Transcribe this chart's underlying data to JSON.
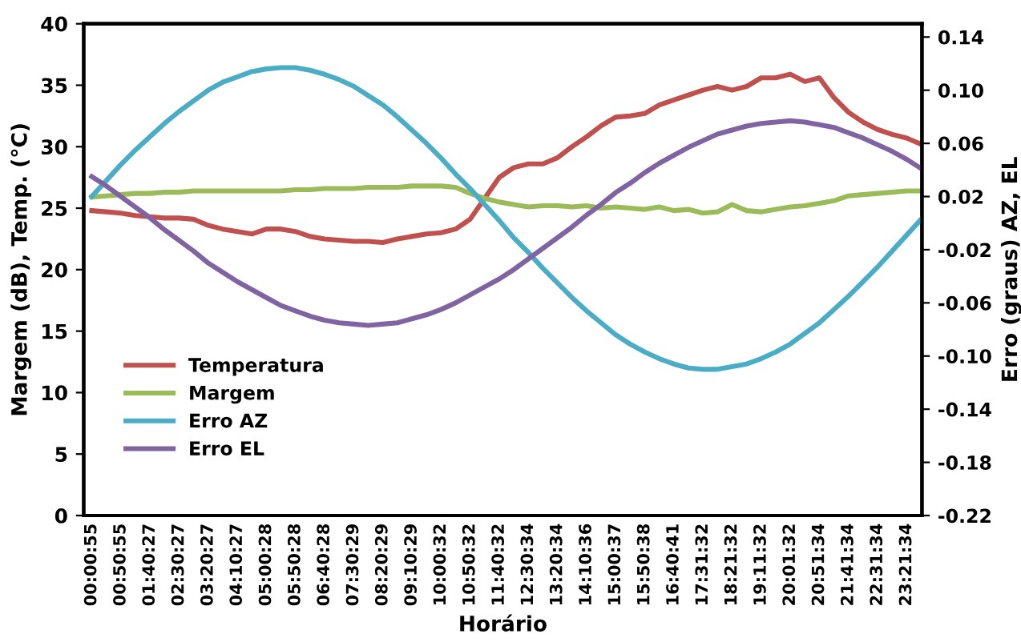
{
  "chart_data": {
    "type": "line",
    "xlabel": "Horário",
    "ylabel": "Margem (dB), Temp. (°C)",
    "y2label": "Erro (graus) AZ, EL",
    "categories": [
      "00:00:55",
      null,
      "00:50:55",
      null,
      "01:40:27",
      null,
      "02:30:27",
      null,
      "03:20:27",
      null,
      "04:10:27",
      null,
      "05:00:28",
      null,
      "05:50:28",
      null,
      "06:40:28",
      null,
      "07:30:29",
      null,
      "08:20:29",
      null,
      "09:10:29",
      null,
      "10:00:32",
      null,
      "10:50:32",
      null,
      "11:40:32",
      null,
      "12:30:34",
      null,
      "13:20:34",
      null,
      "14:10:36",
      null,
      "15:00:37",
      null,
      "15:50:38",
      null,
      "16:40:41",
      null,
      "17:31:32",
      null,
      "18:21:32",
      null,
      "19:11:32",
      null,
      "20:01:32",
      null,
      "20:51:34",
      null,
      "21:41:34",
      null,
      "22:31:34",
      null,
      "23:21:34",
      null
    ],
    "series": [
      {
        "name": "Temperatura",
        "color": "#c0504d",
        "values": [
          24.8,
          24.7,
          24.6,
          24.4,
          24.3,
          24.2,
          24.2,
          24.1,
          23.6,
          23.3,
          23.1,
          22.9,
          23.3,
          23.3,
          23.1,
          22.7,
          22.5,
          22.4,
          22.3,
          22.3,
          22.2,
          22.5,
          22.7,
          22.9,
          23.0,
          23.3,
          24.1,
          25.8,
          27.5,
          28.3,
          28.6,
          28.6,
          29.1,
          30.0,
          30.8,
          31.7,
          32.4,
          32.5,
          32.7,
          33.4,
          33.8,
          34.2,
          34.6,
          34.9,
          34.6,
          34.9,
          35.6,
          35.6,
          35.9,
          35.3,
          35.6,
          34.0,
          32.8,
          32.0,
          31.4,
          31.0,
          30.7,
          30.2
        ]
      },
      {
        "name": "Margem",
        "color": "#9bbb59",
        "values": [
          25.9,
          26.0,
          26.1,
          26.2,
          26.2,
          26.3,
          26.3,
          26.4,
          26.4,
          26.4,
          26.4,
          26.4,
          26.4,
          26.4,
          26.5,
          26.5,
          26.6,
          26.6,
          26.6,
          26.7,
          26.7,
          26.7,
          26.8,
          26.8,
          26.8,
          26.7,
          26.2,
          25.8,
          25.5,
          25.3,
          25.1,
          25.2,
          25.2,
          25.1,
          25.2,
          25.0,
          25.1,
          25.0,
          24.9,
          25.1,
          24.8,
          24.9,
          24.6,
          24.7,
          25.3,
          24.8,
          24.7,
          24.9,
          25.1,
          25.2,
          25.4,
          25.6,
          26.0,
          26.1,
          26.2,
          26.3,
          26.4,
          26.4
        ]
      },
      {
        "name": "Erro AZ",
        "color": "#4bacc6",
        "axis": "y2",
        "values": [
          0.02,
          0.032,
          0.044,
          0.055,
          0.065,
          0.075,
          0.084,
          0.092,
          0.1,
          0.106,
          0.11,
          0.114,
          0.116,
          0.117,
          0.117,
          0.115,
          0.112,
          0.108,
          0.103,
          0.096,
          0.089,
          0.08,
          0.07,
          0.06,
          0.049,
          0.037,
          0.026,
          0.014,
          0.002,
          -0.011,
          -0.022,
          -0.034,
          -0.045,
          -0.056,
          -0.066,
          -0.075,
          -0.084,
          -0.091,
          -0.097,
          -0.102,
          -0.106,
          -0.109,
          -0.11,
          -0.11,
          -0.108,
          -0.106,
          -0.102,
          -0.097,
          -0.091,
          -0.083,
          -0.075,
          -0.065,
          -0.055,
          -0.044,
          -0.033,
          -0.021,
          -0.009,
          0.003
        ]
      },
      {
        "name": "Erro EL",
        "color": "#8064a2",
        "axis": "y2",
        "values": [
          0.035,
          0.028,
          0.02,
          0.012,
          0.004,
          -0.005,
          -0.013,
          -0.021,
          -0.03,
          -0.037,
          -0.044,
          -0.05,
          -0.056,
          -0.062,
          -0.066,
          -0.07,
          -0.073,
          -0.075,
          -0.076,
          -0.077,
          -0.076,
          -0.075,
          -0.072,
          -0.069,
          -0.065,
          -0.06,
          -0.054,
          -0.048,
          -0.042,
          -0.035,
          -0.027,
          -0.019,
          -0.011,
          -0.003,
          0.006,
          0.014,
          0.023,
          0.03,
          0.038,
          0.045,
          0.051,
          0.057,
          0.062,
          0.067,
          0.07,
          0.073,
          0.075,
          0.076,
          0.077,
          0.076,
          0.074,
          0.072,
          0.068,
          0.064,
          0.059,
          0.054,
          0.048,
          0.041
        ]
      }
    ],
    "ylim": [
      0,
      40
    ],
    "yticks": [
      0,
      5,
      10,
      15,
      20,
      25,
      30,
      35,
      40
    ],
    "y2lim": [
      -0.22,
      0.15
    ],
    "y2ticks": [
      -0.22,
      -0.18,
      -0.14,
      {
        "value": -0.1,
        "label": "-0.10"
      },
      -0.06,
      -0.02,
      0.02,
      0.06,
      {
        "value": 0.1,
        "label": "0.10"
      },
      0.14
    ],
    "legend": "bottom left",
    "grid": false,
    "marker": "none",
    "line_style": "solid"
  }
}
